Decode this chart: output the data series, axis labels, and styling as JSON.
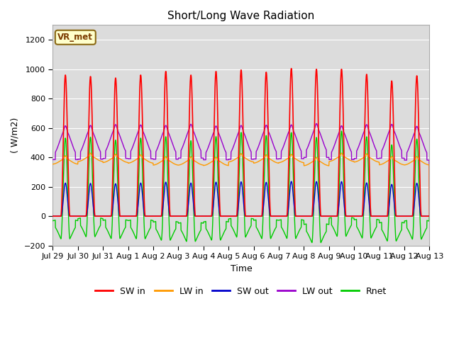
{
  "title": "Short/Long Wave Radiation",
  "xlabel": "Time",
  "ylabel": "( W/m2)",
  "ylim": [
    -200,
    1300
  ],
  "yticks": [
    -200,
    0,
    200,
    400,
    600,
    800,
    1000,
    1200
  ],
  "background_color": "#ffffff",
  "plot_bg_color": "#dcdcdc",
  "colors": {
    "SW_in": "#ff0000",
    "LW_in": "#ff9900",
    "SW_out": "#0000cc",
    "LW_out": "#9900cc",
    "Rnet": "#00cc00"
  },
  "legend_labels": [
    "SW in",
    "LW in",
    "SW out",
    "LW out",
    "Rnet"
  ],
  "xtick_labels": [
    "Jul 29",
    "Jul 30",
    "Jul 31",
    "Aug 1",
    "Aug 2",
    "Aug 3",
    "Aug 4",
    "Aug 5",
    "Aug 6",
    "Aug 7",
    "Aug 8",
    "Aug 9",
    "Aug 10",
    "Aug 11",
    "Aug 12",
    "Aug 13"
  ],
  "vr_met_label": "VR_met",
  "n_days": 15,
  "pts_per_day": 144
}
